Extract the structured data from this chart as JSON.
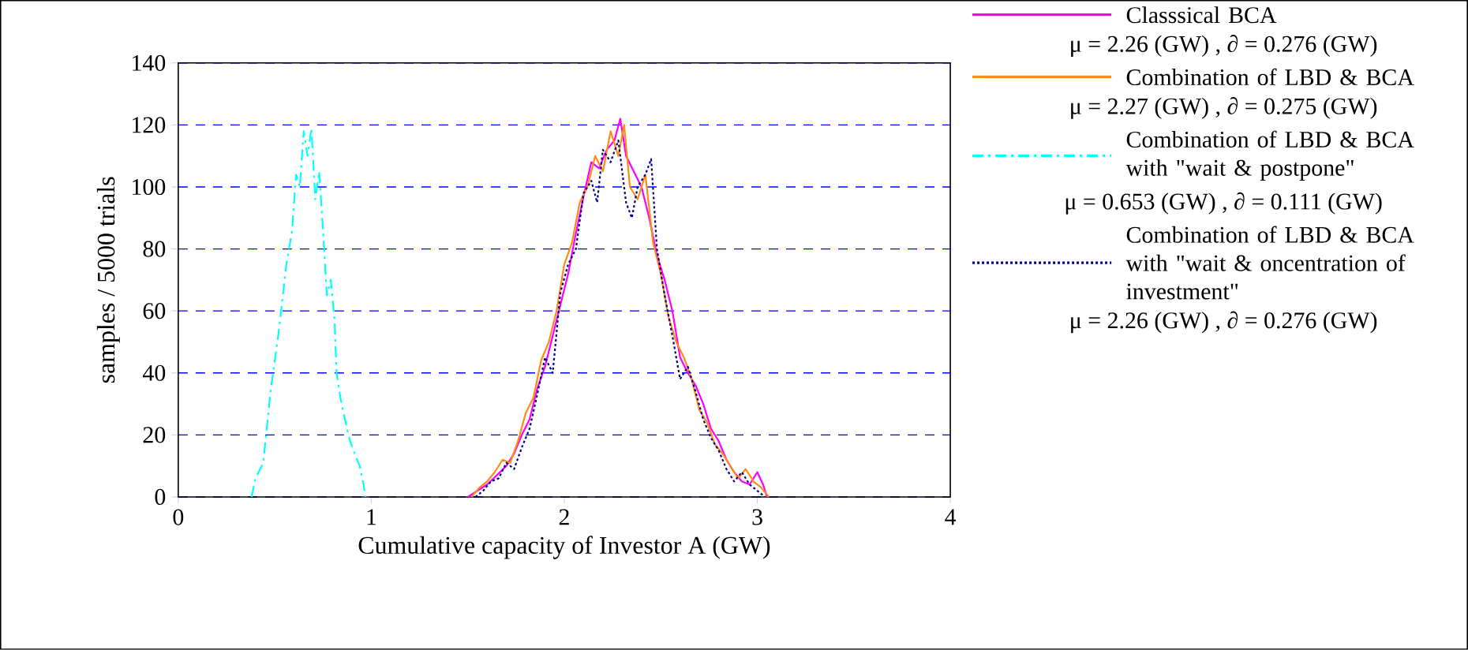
{
  "chart_data": {
    "type": "line",
    "xlabel": "Cumulative capacity of Investor A (GW)",
    "ylabel": "samples / 5000 trials",
    "xlim": [
      0,
      4
    ],
    "ylim": [
      0,
      140
    ],
    "xticks": [
      0,
      1,
      2,
      3,
      4
    ],
    "yticks": [
      0,
      20,
      40,
      60,
      80,
      100,
      120,
      140
    ],
    "grid": "y",
    "legend": "right",
    "series": [
      {
        "name": "Classsical BCA",
        "color": "#ff00ff",
        "line_style": "solid",
        "x": [
          1.5,
          1.55,
          1.6,
          1.65,
          1.7,
          1.74,
          1.78,
          1.82,
          1.86,
          1.9,
          1.94,
          1.98,
          2.02,
          2.06,
          2.1,
          2.14,
          2.18,
          2.22,
          2.26,
          2.29,
          2.32,
          2.36,
          2.4,
          2.44,
          2.48,
          2.52,
          2.56,
          2.6,
          2.64,
          2.68,
          2.72,
          2.76,
          2.8,
          2.84,
          2.88,
          2.92,
          2.96,
          3.0,
          3.03,
          3.05
        ],
        "values": [
          0,
          2,
          4,
          7,
          10,
          14,
          20,
          25,
          35,
          42,
          52,
          62,
          72,
          85,
          97,
          108,
          106,
          112,
          115,
          122,
          110,
          105,
          100,
          90,
          78,
          70,
          60,
          45,
          40,
          36,
          30,
          22,
          18,
          12,
          8,
          5,
          4,
          8,
          4,
          0
        ]
      },
      {
        "name": "Combination of LBD & BCA",
        "color": "#ff8c1a",
        "line_style": "solid",
        "x": [
          1.52,
          1.56,
          1.6,
          1.64,
          1.68,
          1.72,
          1.76,
          1.8,
          1.84,
          1.88,
          1.92,
          1.96,
          2.0,
          2.04,
          2.08,
          2.12,
          2.16,
          2.2,
          2.24,
          2.28,
          2.31,
          2.34,
          2.38,
          2.42,
          2.46,
          2.5,
          2.54,
          2.58,
          2.62,
          2.66,
          2.7,
          2.74,
          2.78,
          2.82,
          2.86,
          2.9,
          2.94,
          2.98,
          3.02,
          3.06
        ],
        "values": [
          0,
          3,
          5,
          8,
          12,
          11,
          18,
          27,
          32,
          44,
          50,
          60,
          75,
          82,
          95,
          100,
          110,
          105,
          118,
          110,
          120,
          100,
          96,
          104,
          82,
          72,
          58,
          50,
          45,
          38,
          28,
          24,
          17,
          14,
          10,
          6,
          9,
          5,
          3,
          0
        ]
      },
      {
        "name": "Combination of LBD & BCA with \"wait & postpone\"",
        "color": "#00ffff",
        "line_style": "dashed",
        "x": [
          0.38,
          0.4,
          0.44,
          0.48,
          0.52,
          0.56,
          0.59,
          0.61,
          0.63,
          0.65,
          0.67,
          0.69,
          0.71,
          0.73,
          0.75,
          0.77,
          0.79,
          0.81,
          0.82,
          0.84,
          0.86,
          0.89,
          0.92,
          0.94,
          0.96,
          0.97
        ],
        "values": [
          0,
          6,
          11,
          35,
          53,
          75,
          86,
          104,
          100,
          118,
          110,
          119,
          96,
          105,
          86,
          65,
          70,
          57,
          40,
          32,
          26,
          18,
          13,
          10,
          4,
          0
        ]
      },
      {
        "name": "Combination of LBD & BCA with \"wait & oncentration of investment\"",
        "color": "#000080",
        "line_style": "dotted",
        "x": [
          1.54,
          1.58,
          1.62,
          1.66,
          1.7,
          1.74,
          1.78,
          1.82,
          1.86,
          1.9,
          1.94,
          1.98,
          2.02,
          2.06,
          2.1,
          2.14,
          2.17,
          2.2,
          2.24,
          2.28,
          2.32,
          2.35,
          2.38,
          2.42,
          2.45,
          2.48,
          2.52,
          2.56,
          2.6,
          2.64,
          2.68,
          2.72,
          2.76,
          2.8,
          2.84,
          2.88,
          2.92,
          2.96,
          3.0,
          3.04
        ],
        "values": [
          0,
          2,
          5,
          6,
          11,
          9,
          16,
          22,
          33,
          45,
          40,
          66,
          75,
          80,
          98,
          102,
          95,
          112,
          108,
          115,
          95,
          90,
          100,
          104,
          109,
          80,
          65,
          52,
          38,
          42,
          34,
          25,
          19,
          15,
          9,
          5,
          8,
          4,
          2,
          0
        ]
      }
    ],
    "annotations": [
      "μ = 2.26 (GW) , ∂ = 0.276 (GW)",
      "μ = 2.27 (GW) , ∂ = 0.275 (GW)",
      "μ = 0.653 (GW) , ∂ = 0.111 (GW)",
      "μ = 2.26 (GW) , ∂ = 0.276 (GW)"
    ]
  }
}
